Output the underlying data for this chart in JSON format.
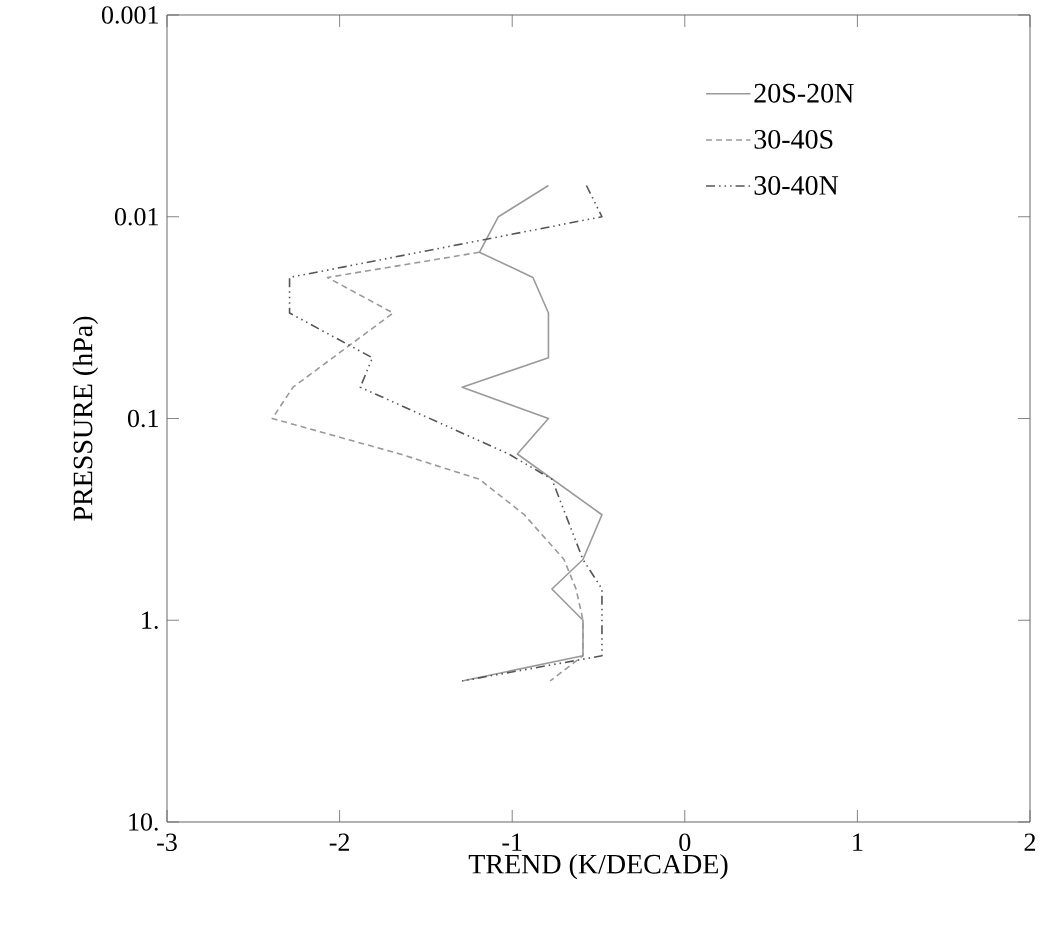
{
  "chart_data": {
    "type": "line",
    "xlabel": "TREND (K/DECADE)",
    "ylabel": "PRESSURE (hPa)",
    "xlim": [
      -3,
      2
    ],
    "xticks": [
      -3,
      -2,
      -1,
      0,
      1,
      2
    ],
    "ylim": [
      10,
      0.001
    ],
    "log": "y",
    "yticks": [
      0.001,
      0.01,
      0.1,
      {
        "value": 1,
        "label": "1."
      },
      {
        "value": 10,
        "label": "10."
      }
    ],
    "grid": false,
    "legend": "top right",
    "marker": "none",
    "series": [
      {
        "name": "20S-20N",
        "color": "#9a9a9a",
        "line_style": "solid",
        "x": [
          -0.79,
          -1.08,
          -1.19,
          -0.88,
          -0.79,
          -0.79,
          -1.29,
          -0.79,
          -0.97,
          -0.48,
          -0.59,
          -0.77,
          -0.59,
          -0.59,
          -1.29
        ],
        "values": [
          0.007,
          0.01,
          0.015,
          0.02,
          0.03,
          0.05,
          0.07,
          0.1,
          0.15,
          0.3,
          0.5,
          0.7,
          1,
          1.5,
          2
        ]
      },
      {
        "name": "30-40S",
        "color": "#9a9a9a",
        "line_style": "dashed",
        "x": [
          -1.19,
          -2.07,
          -1.69,
          -2.27,
          -2.39,
          -1.65,
          -1.19,
          -0.93,
          -0.7,
          -0.63,
          -0.59,
          -0.59,
          -0.78
        ],
        "values": [
          0.015,
          0.02,
          0.03,
          0.07,
          0.1,
          0.15,
          0.2,
          0.3,
          0.5,
          0.7,
          1,
          1.5,
          2
        ]
      },
      {
        "name": "30-40N",
        "color": "#555555",
        "line_style": "dashdotdotted",
        "x": [
          -0.57,
          -0.48,
          -2.29,
          -2.29,
          -1.81,
          -1.88,
          -1.02,
          -0.77,
          -0.59,
          -0.48,
          -0.48,
          -1.29
        ],
        "values": [
          0.007,
          0.01,
          0.02,
          0.03,
          0.05,
          0.07,
          0.15,
          0.2,
          0.5,
          0.7,
          1.5,
          2
        ]
      }
    ]
  }
}
